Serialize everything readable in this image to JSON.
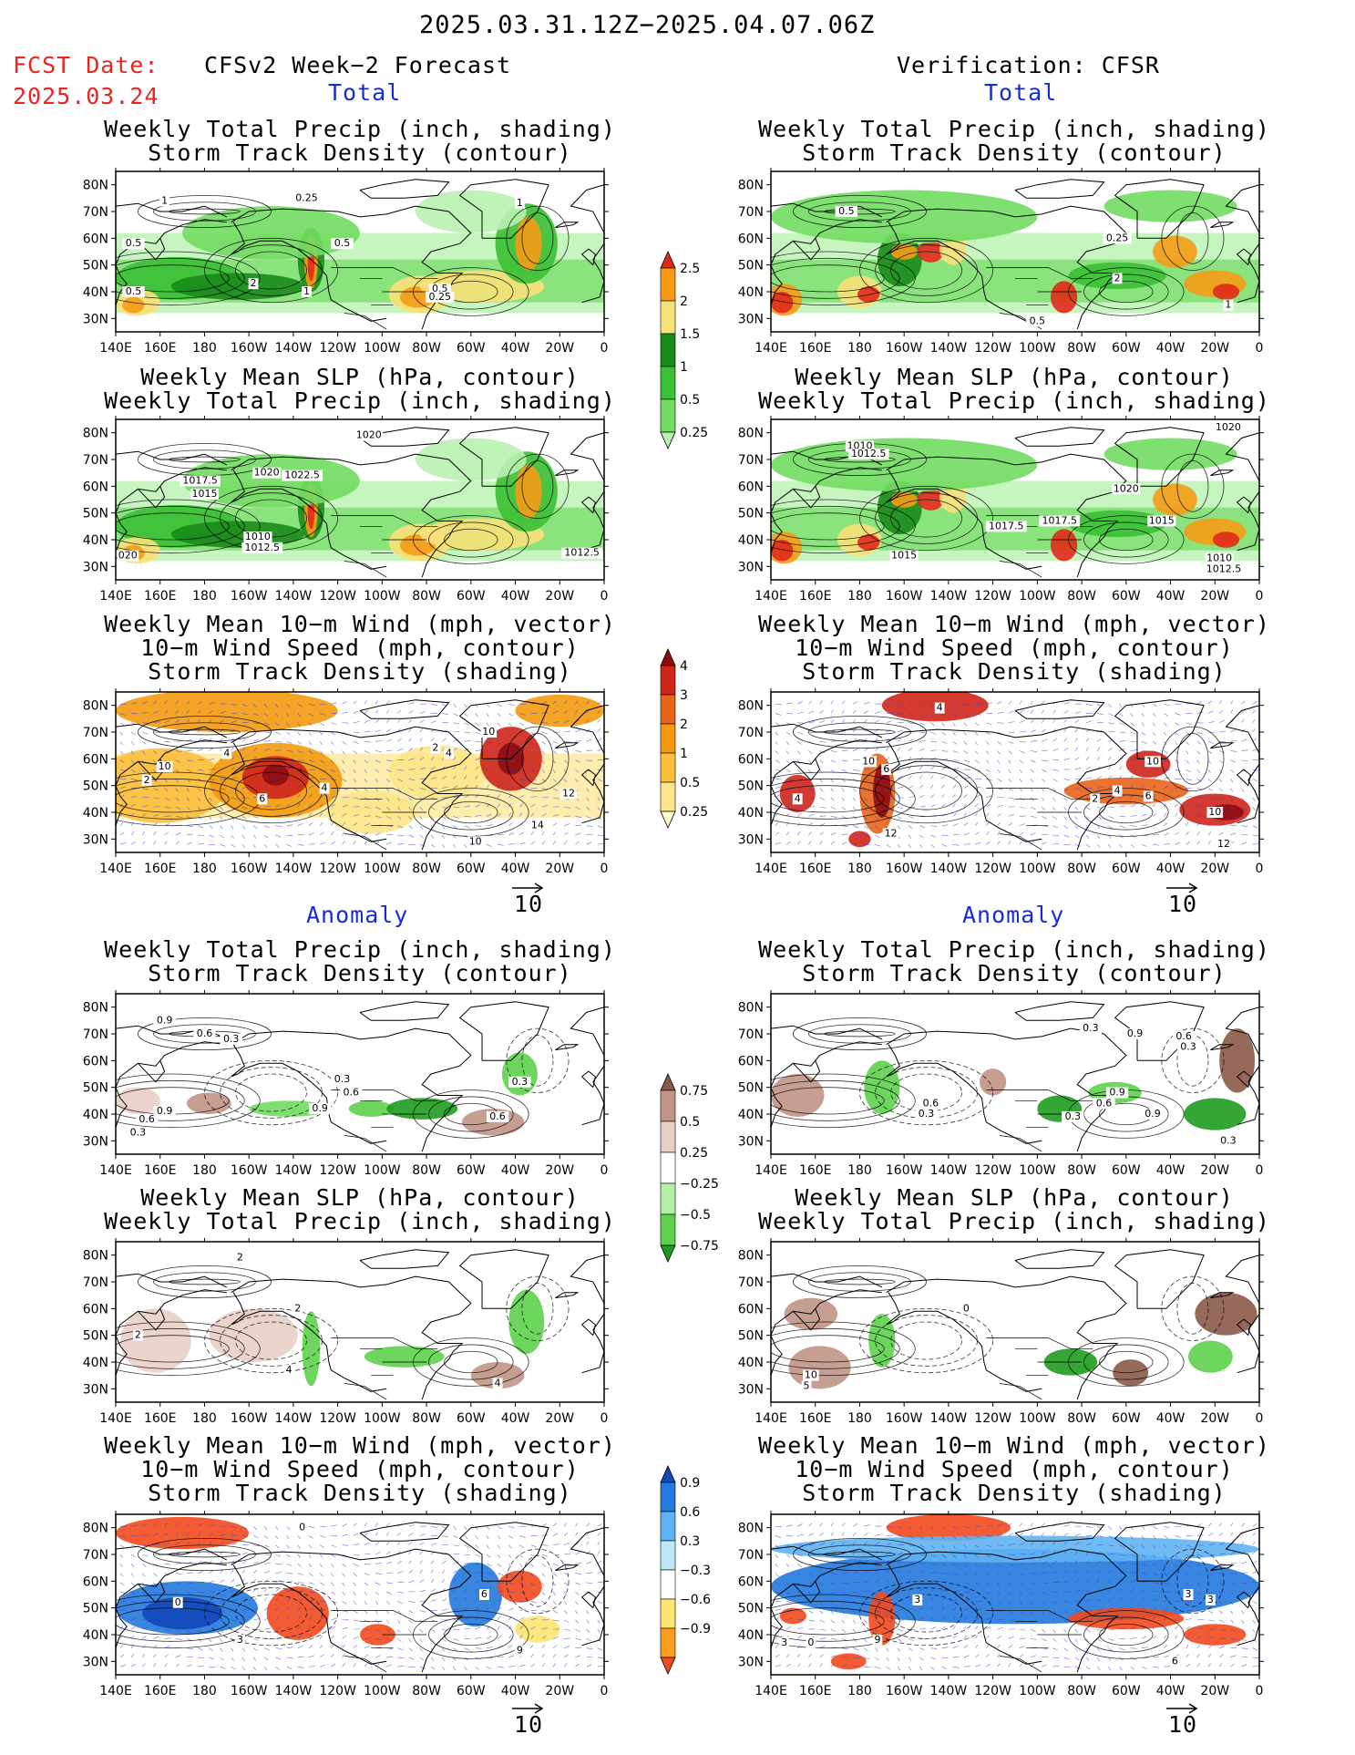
{
  "header": {
    "date_range": "2025.03.31.12Z−2025.04.07.06Z",
    "fcst_date_label": "FCST Date:",
    "fcst_date_value": "2025.03.24",
    "left_title": "CFSv2 Week−2 Forecast",
    "right_title": "Verification: CFSR"
  },
  "sections": {
    "total": "Total",
    "anomaly": "Anomaly"
  },
  "titles": {
    "precip_storm": [
      "Weekly Total Precip (inch, shading)",
      "Storm Track Density (contour)"
    ],
    "slp_precip": [
      "Weekly Mean SLP (hPa, contour)",
      "Weekly Total Precip (inch, shading)"
    ],
    "wind_storm": [
      "Weekly Mean 10−m Wind (mph, vector)",
      "10−m Wind Speed (mph, contour)",
      "Storm Track Density (shading)"
    ]
  },
  "axis": {
    "lat_labels": [
      "80N",
      "70N",
      "60N",
      "50N",
      "40N",
      "30N"
    ],
    "lon_labels": [
      "140E",
      "160E",
      "180",
      "160W",
      "140W",
      "120W",
      "100W",
      "80W",
      "60W",
      "40W",
      "20W",
      "0"
    ]
  },
  "vector_ref": "10",
  "colorbars": {
    "precip_total": {
      "labels": [
        "0.25",
        "0.5",
        "1",
        "1.5",
        "2",
        "2.5"
      ],
      "colors": [
        "#b8f2b0",
        "#72dc62",
        "#3bbf34",
        "#188a1a",
        "#f8e07a",
        "#f59b16",
        "#e02a18"
      ]
    },
    "storm_total": {
      "labels": [
        "0.25",
        "0.5",
        "1",
        "2",
        "3",
        "4"
      ],
      "colors": [
        "#fffcc4",
        "#fde58a",
        "#fbbf3c",
        "#f39a10",
        "#e86418",
        "#cf2518",
        "#8d0c12"
      ]
    },
    "precip_anom": {
      "labels": [
        "0.75",
        "0.5",
        "0.25",
        "−0.25",
        "−0.5",
        "−0.75"
      ],
      "colors": [
        "#1f9b1f",
        "#5ed04e",
        "#b4efa6",
        "#ffffff",
        "#e8cfc6",
        "#c09486",
        "#8a5a48"
      ]
    },
    "storm_anom": {
      "labels": [
        "0.9",
        "0.6",
        "0.3",
        "−0.3",
        "−0.6",
        "−0.9"
      ],
      "colors": [
        "#f24a1c",
        "#fb9b20",
        "#fde571",
        "#ffffff",
        "#bde8f8",
        "#5fb3f1",
        "#2379de",
        "#1248b8"
      ]
    }
  },
  "panels": [
    {
      "theme": "precip",
      "contour_labels": [
        {
          "text": "1",
          "lon": 162,
          "lat": 74
        },
        {
          "text": "0.25",
          "lon": 226,
          "lat": 75
        },
        {
          "text": "1",
          "lon": 322,
          "lat": 73
        },
        {
          "text": "0.5",
          "lon": 148,
          "lat": 58
        },
        {
          "text": "0.5",
          "lon": 242,
          "lat": 58
        },
        {
          "text": "2",
          "lon": 202,
          "lat": 43
        },
        {
          "text": "1",
          "lon": 226,
          "lat": 40
        },
        {
          "text": "0.5",
          "lon": 148,
          "lat": 40
        },
        {
          "text": "0.5",
          "lon": 286,
          "lat": 41
        },
        {
          "text": "0.25",
          "lon": 286,
          "lat": 38
        }
      ]
    },
    {
      "theme": "precip",
      "contour_labels": [
        {
          "text": "0.5",
          "lon": 174,
          "lat": 70
        },
        {
          "text": "0.25",
          "lon": 296,
          "lat": 60
        },
        {
          "text": "2",
          "lon": 296,
          "lat": 45
        },
        {
          "text": "0.5",
          "lon": 260,
          "lat": 29
        },
        {
          "text": "1",
          "lon": 346,
          "lat": 35
        }
      ]
    },
    {
      "theme": "slp",
      "contour_labels": [
        {
          "text": "1017.5",
          "lon": 178,
          "lat": 62
        },
        {
          "text": "1015",
          "lon": 180,
          "lat": 57
        },
        {
          "text": "1020",
          "lon": 208,
          "lat": 65
        },
        {
          "text": "1022.5",
          "lon": 224,
          "lat": 64
        },
        {
          "text": "1020",
          "lon": 254,
          "lat": 79
        },
        {
          "text": "1010",
          "lon": 204,
          "lat": 41
        },
        {
          "text": "1012.5",
          "lon": 206,
          "lat": 37
        },
        {
          "text": "1020",
          "lon": 144,
          "lat": 34
        },
        {
          "text": "1012.5",
          "lon": 350,
          "lat": 35
        }
      ]
    },
    {
      "theme": "slp",
      "contour_labels": [
        {
          "text": "1010",
          "lon": 180,
          "lat": 75
        },
        {
          "text": "1012.5",
          "lon": 184,
          "lat": 72
        },
        {
          "text": "1020",
          "lon": 300,
          "lat": 59
        },
        {
          "text": "1020",
          "lon": 346,
          "lat": 82
        },
        {
          "text": "1017.5",
          "lon": 246,
          "lat": 45
        },
        {
          "text": "1017.5",
          "lon": 270,
          "lat": 47
        },
        {
          "text": "1015",
          "lon": 316,
          "lat": 47
        },
        {
          "text": "1015",
          "lon": 200,
          "lat": 34
        },
        {
          "text": "1010",
          "lon": 342,
          "lat": 33
        },
        {
          "text": "1012.5",
          "lon": 344,
          "lat": 29
        }
      ]
    },
    {
      "theme": "storm",
      "contour_labels": [
        {
          "text": "4",
          "lon": 190,
          "lat": 62
        },
        {
          "text": "2",
          "lon": 154,
          "lat": 52
        },
        {
          "text": "10",
          "lon": 162,
          "lat": 57
        },
        {
          "text": "6",
          "lon": 206,
          "lat": 45
        },
        {
          "text": "4",
          "lon": 234,
          "lat": 49
        },
        {
          "text": "2",
          "lon": 284,
          "lat": 64
        },
        {
          "text": "4",
          "lon": 290,
          "lat": 62
        },
        {
          "text": "10",
          "lon": 308,
          "lat": 70
        },
        {
          "text": "12",
          "lon": 344,
          "lat": 47
        },
        {
          "text": "14",
          "lon": 330,
          "lat": 35
        },
        {
          "text": "10",
          "lon": 302,
          "lat": 29
        }
      ]
    },
    {
      "theme": "storm",
      "contour_labels": [
        {
          "text": "4",
          "lon": 216,
          "lat": 79
        },
        {
          "text": "4",
          "lon": 152,
          "lat": 45
        },
        {
          "text": "10",
          "lon": 184,
          "lat": 59
        },
        {
          "text": "6",
          "lon": 192,
          "lat": 56
        },
        {
          "text": "12",
          "lon": 194,
          "lat": 32
        },
        {
          "text": "2",
          "lon": 286,
          "lat": 45
        },
        {
          "text": "4",
          "lon": 296,
          "lat": 48
        },
        {
          "text": "6",
          "lon": 310,
          "lat": 46
        },
        {
          "text": "10",
          "lon": 312,
          "lat": 59
        },
        {
          "text": "10",
          "lon": 340,
          "lat": 40
        },
        {
          "text": "12",
          "lon": 344,
          "lat": 28
        }
      ]
    },
    {
      "theme": "precip_anom",
      "contour_labels": [
        {
          "text": "0.9",
          "lon": 162,
          "lat": 75
        },
        {
          "text": "0.6",
          "lon": 180,
          "lat": 70
        },
        {
          "text": "0.3",
          "lon": 192,
          "lat": 68
        },
        {
          "text": "0.3",
          "lon": 242,
          "lat": 53
        },
        {
          "text": "0.6",
          "lon": 246,
          "lat": 48
        },
        {
          "text": "0.9",
          "lon": 232,
          "lat": 42
        },
        {
          "text": "0.3",
          "lon": 322,
          "lat": 52
        },
        {
          "text": "0.6",
          "lon": 312,
          "lat": 39
        },
        {
          "text": "0.9",
          "lon": 162,
          "lat": 41
        },
        {
          "text": "0.6",
          "lon": 154,
          "lat": 38
        },
        {
          "text": "0.3",
          "lon": 150,
          "lat": 33
        }
      ]
    },
    {
      "theme": "precip_anom",
      "contour_labels": [
        {
          "text": "0.3",
          "lon": 284,
          "lat": 72
        },
        {
          "text": "0.9",
          "lon": 304,
          "lat": 70
        },
        {
          "text": "0.6",
          "lon": 326,
          "lat": 69
        },
        {
          "text": "0.3",
          "lon": 328,
          "lat": 65
        },
        {
          "text": "0.9",
          "lon": 296,
          "lat": 48
        },
        {
          "text": "0.6",
          "lon": 290,
          "lat": 44
        },
        {
          "text": "0.3",
          "lon": 276,
          "lat": 39
        },
        {
          "text": "0.9",
          "lon": 312,
          "lat": 40
        },
        {
          "text": "0.6",
          "lon": 212,
          "lat": 44
        },
        {
          "text": "0.3",
          "lon": 210,
          "lat": 40
        },
        {
          "text": "0.3",
          "lon": 346,
          "lat": 30
        }
      ]
    },
    {
      "theme": "slp_anom",
      "contour_labels": [
        {
          "text": "2",
          "lon": 222,
          "lat": 60
        },
        {
          "text": "2",
          "lon": 196,
          "lat": 79
        },
        {
          "text": "4",
          "lon": 218,
          "lat": 37
        },
        {
          "text": "4",
          "lon": 312,
          "lat": 32
        },
        {
          "text": "2",
          "lon": 150,
          "lat": 50
        }
      ]
    },
    {
      "theme": "slp_anom",
      "contour_labels": [
        {
          "text": "10",
          "lon": 158,
          "lat": 35
        },
        {
          "text": "5",
          "lon": 156,
          "lat": 31
        },
        {
          "text": "0",
          "lon": 228,
          "lat": 60
        }
      ]
    },
    {
      "theme": "storm_anom",
      "contour_labels": [
        {
          "text": "0",
          "lon": 224,
          "lat": 80
        },
        {
          "text": "0",
          "lon": 168,
          "lat": 52
        },
        {
          "text": "3",
          "lon": 196,
          "lat": 38
        },
        {
          "text": "6",
          "lon": 306,
          "lat": 55
        },
        {
          "text": "9",
          "lon": 322,
          "lat": 34
        }
      ]
    },
    {
      "theme": "storm_anom",
      "contour_labels": [
        {
          "text": "0",
          "lon": 158,
          "lat": 37
        },
        {
          "text": "3",
          "lon": 146,
          "lat": 37
        },
        {
          "text": "9",
          "lon": 188,
          "lat": 38
        },
        {
          "text": "3",
          "lon": 206,
          "lat": 53
        },
        {
          "text": "3",
          "lon": 328,
          "lat": 55
        },
        {
          "text": "3",
          "lon": 338,
          "lat": 53
        },
        {
          "text": "6",
          "lon": 322,
          "lat": 30
        }
      ]
    }
  ]
}
